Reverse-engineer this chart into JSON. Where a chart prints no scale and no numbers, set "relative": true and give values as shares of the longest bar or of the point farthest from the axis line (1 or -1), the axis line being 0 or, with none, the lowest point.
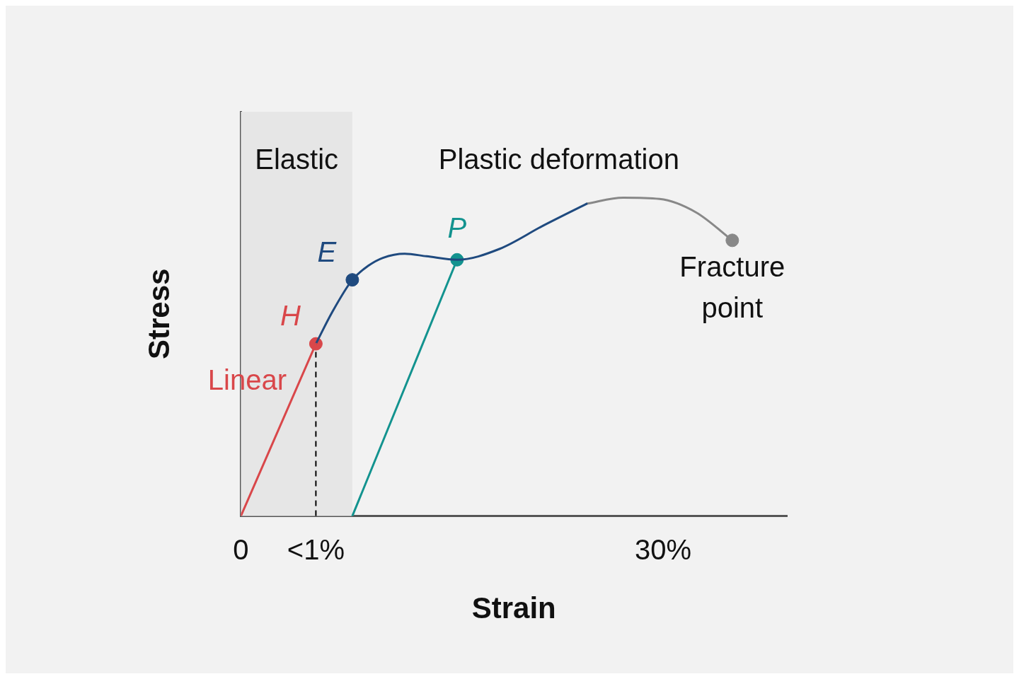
{
  "chart_data": {
    "type": "line",
    "relative": true,
    "xlabel": "Strain",
    "ylabel": "Stress",
    "xlim": [
      0,
      38.8
    ],
    "xticks": [
      {
        "value": 0,
        "label": "0"
      },
      {
        "value": 5.33,
        "label": "<1%"
      },
      {
        "value": 30,
        "label": "30%"
      }
    ],
    "grid": false,
    "legend": false,
    "tick_labels": "x",
    "line_style": "solid",
    "bands": [
      {
        "axis": "x",
        "from": 0,
        "to": 7.92,
        "label": "Elastic",
        "color": "#e6e6e6"
      }
    ],
    "ref_lines": [
      {
        "axis": "x",
        "value": 5.33,
        "line_style": "dashed",
        "color": "#000000"
      }
    ],
    "series": [
      {
        "name": "Linear",
        "color": "#d9474a",
        "x": [
          0,
          5.33
        ],
        "values": [
          0,
          0.541
        ]
      },
      {
        "color": "#1f4a7f",
        "x": [
          5.33,
          6.47,
          7.92,
          9.05,
          10.09,
          11.64,
          13.19,
          15.36,
          18.37,
          21.47,
          24.57
        ],
        "values": [
          0.541,
          0.639,
          0.742,
          0.786,
          0.811,
          0.824,
          0.816,
          0.805,
          0.839,
          0.912,
          0.981
        ]
      },
      {
        "color": "#888888",
        "x": [
          24.57,
          27.16,
          29.75,
          32.34,
          34.92
        ],
        "values": [
          0.981,
          1.0,
          0.996,
          0.954,
          0.866
        ]
      },
      {
        "color": "#13938f",
        "x": [
          15.36,
          7.92
        ],
        "values": [
          0.805,
          0
        ]
      },
      {
        "type": "scatter",
        "x": [
          5.33,
          7.92,
          15.36,
          34.92
        ],
        "values": [
          0.541,
          0.742,
          0.805,
          0.866
        ],
        "colors": [
          "#d9474a",
          "#1f4a7f",
          "#13938f",
          "#888888"
        ]
      }
    ],
    "annotations": [
      {
        "text": "H",
        "x": 5.33,
        "y": 0.541
      },
      {
        "text": "E",
        "x": 7.92,
        "y": 0.742
      },
      {
        "text": "P",
        "x": 15.36,
        "y": 0.805
      },
      {
        "text": "Fracture point",
        "x": 34.92,
        "y": 0.866
      },
      "Plastic deformation"
    ]
  }
}
